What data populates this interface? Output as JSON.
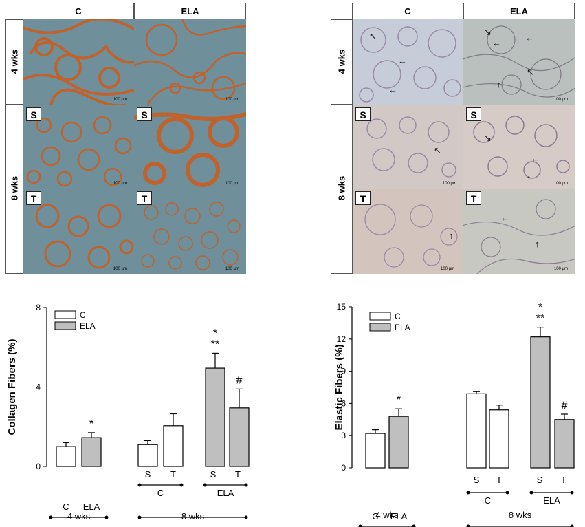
{
  "micro_left": {
    "col_headers": [
      "C",
      "ELA"
    ],
    "row_4wks": "4 wks",
    "row_8wks": "8 wks",
    "sub_s": "S",
    "sub_t": "T",
    "scalebar": "100 µm"
  },
  "micro_right": {
    "col_headers": [
      "C",
      "ELA"
    ],
    "row_4wks": "4 wks",
    "row_8wks": "8 wks",
    "sub_s": "S",
    "sub_t": "T",
    "scalebar": "100 µm"
  },
  "colors": {
    "collagen_bg": "#6f8f9a",
    "collagen_stain": "#c0622c",
    "elastic_bg": "#c7cdd8",
    "elastic_stain": "#9b8aa6",
    "bar_c": "#ffffff",
    "bar_ela": "#bfbfbf"
  },
  "chart_data": [
    {
      "type": "bar",
      "ylabel": "Collagen Fibers (%)",
      "ylim": [
        0,
        8
      ],
      "yticks": [
        "0",
        "4",
        "8"
      ],
      "legend": [
        "C",
        "ELA"
      ],
      "legend_position": "top-left",
      "bars": [
        {
          "group": "4 wks",
          "sub": "",
          "series": "C",
          "value": 1.0,
          "err": 0.2,
          "mark": ""
        },
        {
          "group": "4 wks",
          "sub": "",
          "series": "ELA",
          "value": 1.45,
          "err": 0.25,
          "mark": "*"
        },
        {
          "group": "8 wks C",
          "sub": "S",
          "series": "C",
          "value": 1.1,
          "err": 0.2,
          "mark": ""
        },
        {
          "group": "8 wks C",
          "sub": "T",
          "series": "C",
          "value": 2.05,
          "err": 0.6,
          "mark": ""
        },
        {
          "group": "8 wks ELA",
          "sub": "S",
          "series": "ELA",
          "value": 4.95,
          "err": 0.75,
          "mark": "*\n**"
        },
        {
          "group": "8 wks ELA",
          "sub": "T",
          "series": "ELA",
          "value": 2.95,
          "err": 0.95,
          "mark": "#"
        }
      ],
      "x_labels": {
        "sub": [
          "S",
          "T",
          "S",
          "T"
        ],
        "group_4": [
          "C",
          "ELA"
        ],
        "group_8": [
          "C",
          "ELA"
        ],
        "bottom_4": "4 wks",
        "bottom_8": "8 wks"
      }
    },
    {
      "type": "bar",
      "ylabel": "Elastic Fibers (%)",
      "ylim": [
        0,
        15
      ],
      "yticks": [
        "0",
        "3",
        "6",
        "9",
        "12",
        "15"
      ],
      "legend": [
        "C",
        "ELA"
      ],
      "legend_position": "top-left",
      "bars": [
        {
          "group": "4 wks",
          "sub": "",
          "series": "C",
          "value": 3.2,
          "err": 0.35,
          "mark": ""
        },
        {
          "group": "4 wks",
          "sub": "",
          "series": "ELA",
          "value": 4.8,
          "err": 0.7,
          "mark": "*"
        },
        {
          "group": "8 wks C",
          "sub": "S",
          "series": "C",
          "value": 6.9,
          "err": 0.2,
          "mark": ""
        },
        {
          "group": "8 wks C",
          "sub": "T",
          "series": "C",
          "value": 5.4,
          "err": 0.45,
          "mark": ""
        },
        {
          "group": "8 wks ELA",
          "sub": "S",
          "series": "ELA",
          "value": 12.2,
          "err": 0.9,
          "mark": "*\n**"
        },
        {
          "group": "8 wks ELA",
          "sub": "T",
          "series": "ELA",
          "value": 4.5,
          "err": 0.5,
          "mark": "#"
        }
      ],
      "x_labels": {
        "sub": [
          "S",
          "T",
          "S",
          "T"
        ],
        "group_4": [
          "C",
          "ELA"
        ],
        "group_8": [
          "C",
          "ELA"
        ],
        "bottom_4": "4 wks",
        "bottom_8": "8 wks"
      }
    }
  ]
}
